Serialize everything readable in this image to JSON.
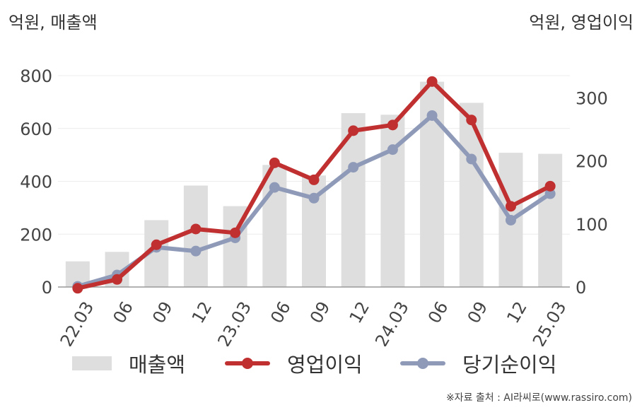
{
  "chart_data": {
    "type": "bar+line",
    "left_axis_title": "억원, 매출액",
    "right_axis_title": "억원, 영업이익",
    "categories": [
      "22.03",
      "06",
      "09",
      "12",
      "23.03",
      "06",
      "09",
      "12",
      "24.03",
      "06",
      "09",
      "12",
      "25.03"
    ],
    "left_axis": {
      "ylim": [
        0,
        800
      ],
      "ticks": [
        "0",
        "200",
        "400",
        "600",
        "800"
      ]
    },
    "right_axis": {
      "ylim": [
        0,
        340
      ],
      "ticks": [
        "0",
        "100",
        "200",
        "300"
      ]
    },
    "series": [
      {
        "name": "매출액",
        "type": "bar",
        "axis": "left",
        "color": "#dedede",
        "values": [
          97,
          133,
          253,
          384,
          306,
          462,
          422,
          658,
          652,
          777,
          697,
          508,
          504
        ]
      },
      {
        "name": "영업이익",
        "type": "line",
        "axis": "right",
        "color": "#c03030",
        "values": [
          -2,
          12,
          67,
          92,
          86,
          197,
          170,
          248,
          257,
          326,
          265,
          128,
          160
        ]
      },
      {
        "name": "당기순이익",
        "type": "line",
        "axis": "right",
        "color": "#8e9ab8",
        "values": [
          1,
          19,
          63,
          57,
          78,
          158,
          141,
          190,
          218,
          272,
          203,
          106,
          148
        ]
      }
    ],
    "grid": true,
    "legend_position": "bottom"
  },
  "legend": {
    "bar_label": "매출액",
    "line1_label": "영업이익",
    "line2_label": "당기순이익"
  },
  "source": "※자료 출처 : AI라씨로(www.rassiro.com)"
}
